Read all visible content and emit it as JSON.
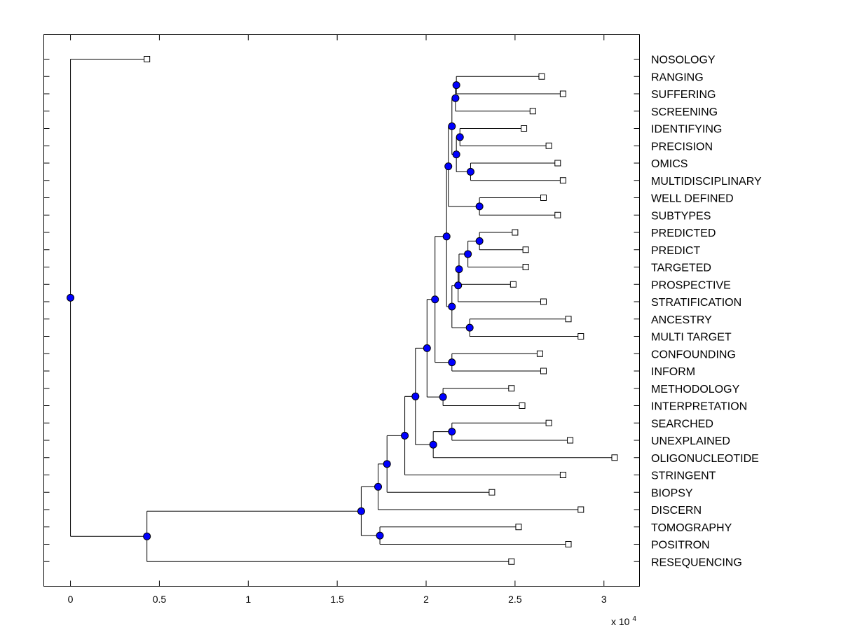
{
  "chart_data": {
    "type": "dendrogram",
    "orientation": "horizontal",
    "axis": {
      "xlim": [
        -1500,
        32000
      ],
      "ticks": [
        0,
        5000,
        10000,
        15000,
        20000,
        25000,
        30000
      ],
      "tick_labels": [
        "0",
        "0.5",
        "1",
        "1.5",
        "2",
        "2.5",
        "3"
      ],
      "multiplier_base": "x 10",
      "multiplier_exp": "4"
    },
    "leaves": [
      {
        "label": "NOSOLOGY",
        "x": 4300
      },
      {
        "label": "RANGING",
        "x": 26500
      },
      {
        "label": "SUFFERING",
        "x": 27700
      },
      {
        "label": "SCREENING",
        "x": 26000
      },
      {
        "label": "IDENTIFYING",
        "x": 25500
      },
      {
        "label": "PRECISION",
        "x": 26900
      },
      {
        "label": "OMICS",
        "x": 27400
      },
      {
        "label": "MULTIDISCIPLINARY",
        "x": 27700
      },
      {
        "label": "WELL DEFINED",
        "x": 26600
      },
      {
        "label": "SUBTYPES",
        "x": 27400
      },
      {
        "label": "PREDICTED",
        "x": 25000
      },
      {
        "label": "PREDICT",
        "x": 25600
      },
      {
        "label": "TARGETED",
        "x": 25600
      },
      {
        "label": "PROSPECTIVE",
        "x": 24900
      },
      {
        "label": "STRATIFICATION",
        "x": 26600
      },
      {
        "label": "ANCESTRY",
        "x": 28000
      },
      {
        "label": "MULTI TARGET",
        "x": 28700
      },
      {
        "label": "CONFOUNDING",
        "x": 26400
      },
      {
        "label": "INFORM",
        "x": 26600
      },
      {
        "label": "METHODOLOGY",
        "x": 24800
      },
      {
        "label": "INTERPRETATION",
        "x": 25400
      },
      {
        "label": "SEARCHED",
        "x": 26900
      },
      {
        "label": "UNEXPLAINED",
        "x": 28100
      },
      {
        "label": "OLIGONUCLEOTIDE",
        "x": 30600
      },
      {
        "label": "STRINGENT",
        "x": 27700
      },
      {
        "label": "BIOPSY",
        "x": 23700
      },
      {
        "label": "DISCERN",
        "x": 28700
      },
      {
        "label": "TOMOGRAPHY",
        "x": 25200
      },
      {
        "label": "POSITRON",
        "x": 28000
      },
      {
        "label": "RESEQUENCING",
        "x": 24800
      }
    ],
    "merges": [
      {
        "id": "M1",
        "x": 21700,
        "children": [
          "L1",
          "L2"
        ]
      },
      {
        "id": "M2",
        "x": 21650,
        "children": [
          "M1",
          "L3"
        ]
      },
      {
        "id": "M3",
        "x": 21900,
        "children": [
          "L4",
          "L5"
        ]
      },
      {
        "id": "M4",
        "x": 22500,
        "children": [
          "L6",
          "L7"
        ]
      },
      {
        "id": "M5",
        "x": 21700,
        "children": [
          "M3",
          "M4"
        ]
      },
      {
        "id": "M6",
        "x": 21450,
        "children": [
          "M2",
          "M5"
        ]
      },
      {
        "id": "M7",
        "x": 23000,
        "children": [
          "L8",
          "L9"
        ]
      },
      {
        "id": "M8",
        "x": 21250,
        "children": [
          "M6",
          "M7"
        ]
      },
      {
        "id": "M9",
        "x": 23000,
        "children": [
          "L10",
          "L11"
        ]
      },
      {
        "id": "M10",
        "x": 22350,
        "children": [
          "M9",
          "L12"
        ]
      },
      {
        "id": "M11",
        "x": 21850,
        "children": [
          "M10",
          "L13"
        ]
      },
      {
        "id": "M12",
        "x": 21800,
        "children": [
          "M11",
          "L14"
        ]
      },
      {
        "id": "M13",
        "x": 22450,
        "children": [
          "L15",
          "L16"
        ]
      },
      {
        "id": "M14",
        "x": 21450,
        "children": [
          "M12",
          "M13"
        ]
      },
      {
        "id": "M15",
        "x": 21150,
        "children": [
          "M8",
          "M14"
        ]
      },
      {
        "id": "M16",
        "x": 21450,
        "children": [
          "L17",
          "L18"
        ]
      },
      {
        "id": "M17",
        "x": 20500,
        "children": [
          "M15",
          "M16"
        ]
      },
      {
        "id": "M18",
        "x": 20950,
        "children": [
          "L19",
          "L20"
        ]
      },
      {
        "id": "M19",
        "x": 20050,
        "children": [
          "M17",
          "M18"
        ]
      },
      {
        "id": "M20",
        "x": 21450,
        "children": [
          "L21",
          "L22"
        ]
      },
      {
        "id": "M21",
        "x": 20400,
        "children": [
          "M20",
          "L23"
        ]
      },
      {
        "id": "M22",
        "x": 19400,
        "children": [
          "M19",
          "M21"
        ]
      },
      {
        "id": "M23",
        "x": 18800,
        "children": [
          "M22",
          "L24"
        ]
      },
      {
        "id": "M24",
        "x": 17800,
        "children": [
          "M23",
          "L25"
        ]
      },
      {
        "id": "M25",
        "x": 17300,
        "children": [
          "M24",
          "L26"
        ]
      },
      {
        "id": "M26",
        "x": 17400,
        "children": [
          "L27",
          "L28"
        ]
      },
      {
        "id": "M27",
        "x": 16350,
        "children": [
          "M25",
          "M26"
        ]
      },
      {
        "id": "M28",
        "x": 4300,
        "children": [
          "M27",
          "L29"
        ]
      },
      {
        "id": "M29",
        "x": 0,
        "children": [
          "L0",
          "M28"
        ]
      }
    ],
    "colors": {
      "line": "#000000",
      "node_fill": "#0000ff",
      "leaf_fill": "#ffffff",
      "frame": "#000000"
    },
    "leaf_marker": "square",
    "node_marker": "circle"
  }
}
